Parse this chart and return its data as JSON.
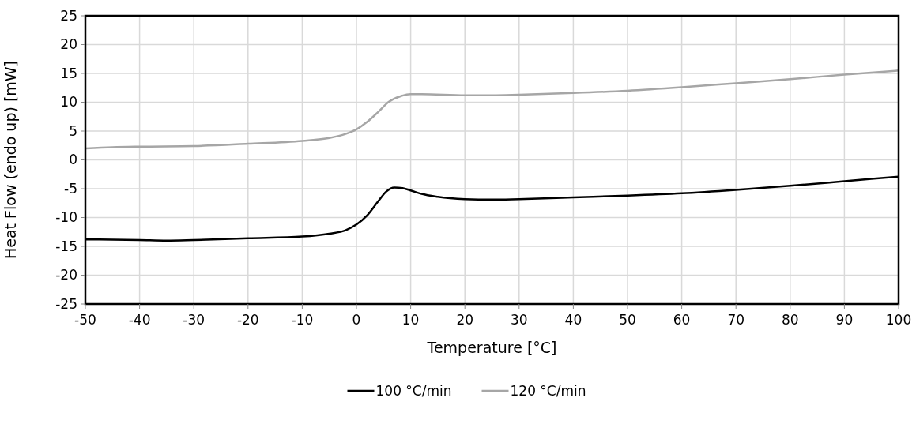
{
  "chart_data": {
    "type": "line",
    "xlabel": "Temperature [°C]",
    "ylabel": "Heat Flow (endo up) [mW]",
    "xlim": [
      -50,
      100
    ],
    "xticks": [
      -50,
      -40,
      -30,
      -20,
      -10,
      0,
      10,
      20,
      30,
      40,
      50,
      60,
      70,
      80,
      90,
      100
    ],
    "ylim": [
      -25,
      25
    ],
    "yticks": [
      -25,
      -20,
      -15,
      -10,
      -5,
      0,
      5,
      10,
      15,
      20,
      25
    ],
    "grid": true,
    "legend": "bottom",
    "marker": "none",
    "line_style": "solid",
    "series": [
      {
        "name": "100 °C/min",
        "color": "#000000",
        "x": [
          -50,
          -40,
          -35,
          -30,
          -20,
          -10,
          -5,
          -2,
          0,
          2,
          4,
          5.5,
          7,
          8.5,
          10,
          12,
          15,
          20,
          25,
          30,
          40,
          50,
          60,
          70,
          80,
          90,
          100
        ],
        "values": [
          -13.8,
          -13.9,
          -14,
          -13.9,
          -13.6,
          -13.3,
          -12.8,
          -12.2,
          -11.2,
          -9.6,
          -7.2,
          -5.5,
          -4.8,
          -4.9,
          -5.3,
          -5.9,
          -6.4,
          -6.8,
          -6.9,
          -6.8,
          -6.5,
          -6.2,
          -5.8,
          -5.2,
          -4.5,
          -3.7,
          -2.9
        ]
      },
      {
        "name": "120 °C/min",
        "color": "#a6a6a6",
        "x": [
          -50,
          -45,
          -40,
          -30,
          -20,
          -10,
          -5,
          -2,
          0,
          2,
          4,
          6,
          8,
          10,
          12,
          20,
          25,
          30,
          40,
          50,
          60,
          70,
          80,
          90,
          100
        ],
        "values": [
          2,
          2.2,
          2.3,
          2.4,
          2.8,
          3.3,
          3.8,
          4.5,
          5.3,
          6.6,
          8.3,
          10.1,
          11,
          11.4,
          11.4,
          11.2,
          11.2,
          11.3,
          11.6,
          12,
          12.6,
          13.3,
          14,
          14.8,
          15.5
        ]
      }
    ]
  }
}
